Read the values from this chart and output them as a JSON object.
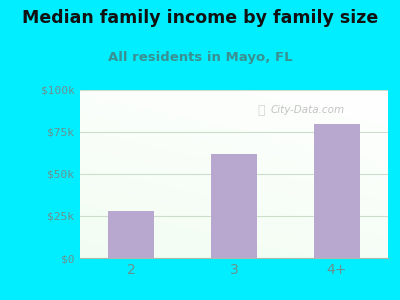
{
  "categories": [
    "2",
    "3",
    "4+"
  ],
  "values": [
    28000,
    62000,
    80000
  ],
  "bar_color": "#b8a8d0",
  "title": "Median family income by family size",
  "subtitle": "All residents in Mayo, FL",
  "title_fontsize": 12.5,
  "subtitle_fontsize": 9.5,
  "ylabel_ticks": [
    0,
    25000,
    50000,
    75000,
    100000
  ],
  "ylabel_labels": [
    "$0",
    "$25k",
    "$50k",
    "$75k",
    "$100k"
  ],
  "ylim": [
    0,
    100000
  ],
  "bg_color": "#00eeff",
  "tick_label_color": "#6a9090",
  "subtitle_color": "#3a9090",
  "title_color": "#111111",
  "watermark": "City-Data.com",
  "grid_color": "#ccddcc",
  "bottom_spine_color": "#aabbaa"
}
